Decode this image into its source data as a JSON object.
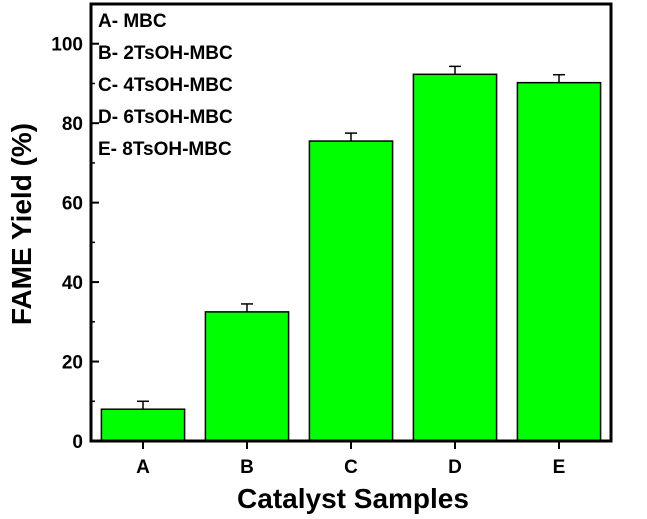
{
  "chart_data": {
    "type": "bar",
    "title": "",
    "xlabel": "Catalyst Samples",
    "ylabel": "FAME Yield (%)",
    "categories": [
      "A",
      "B",
      "C",
      "D",
      "E"
    ],
    "series": [
      {
        "values": [
          8,
          32.5,
          75.5,
          92.3,
          90.2
        ],
        "errors": [
          2.0,
          2.0,
          2.0,
          2.0,
          2.0
        ]
      }
    ],
    "ylim": [
      0,
      110
    ],
    "yticks": [
      0,
      20,
      40,
      60,
      80,
      100
    ],
    "grid": false,
    "bar_color": "#00ff00",
    "legend_position": "top-left",
    "legend": [
      "A- MBC",
      "B- 2TsOH-MBC",
      "C- 4TsOH-MBC",
      "D- 6TsOH-MBC",
      "E- 8TsOH-MBC"
    ]
  }
}
